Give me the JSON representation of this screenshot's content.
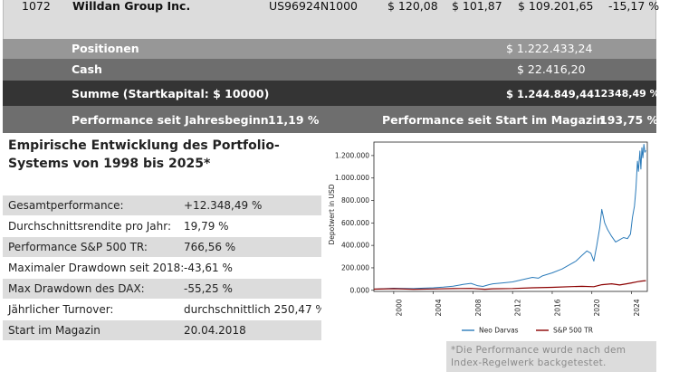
{
  "portfolio": {
    "stock_row": {
      "number": "1072",
      "name": "Willdan Group Inc.",
      "isin": "US96924N1000",
      "price_buy": "$ 120,08",
      "price_now": "$ 101,87",
      "value": "$ 109.201,65",
      "change": "-15,17 %"
    },
    "positions": {
      "label": "Positionen",
      "value": "$ 1.222.433,24"
    },
    "cash": {
      "label": "Cash",
      "value": "$ 22.416,20"
    },
    "sum": {
      "label": "Summe (Startkapital: $ 10000)",
      "value": "$ 1.244.849,44",
      "percent": "12348,49 %"
    },
    "performance": {
      "ytd_label": "Performance seit Jahresbeginn",
      "ytd_value": "11,19 %",
      "since_start_label": "Performance seit Start im Magazin",
      "since_start_value": "193,75 %"
    }
  },
  "stats": {
    "title": "Empirische Entwicklung des Portfolio-Systems von 1998 bis 2025*",
    "rows": [
      {
        "label": "Gesamtperformance:",
        "value": "+12.348,49 %"
      },
      {
        "label": "Durchschnittsrendite pro Jahr:",
        "value": "19,79 %"
      },
      {
        "label": "Performance S&P 500 TR:",
        "value": "766,56 %"
      },
      {
        "label": "Maximaler Drawdown seit 2018:",
        "value": "-43,61 %"
      },
      {
        "label": "Max Drawdown des DAX:",
        "value": "-55,25 %"
      },
      {
        "label": "Jährlicher Turnover:",
        "value": "durchschnittlich 250,47 %"
      },
      {
        "label": "Start im Magazin",
        "value": "20.04.2018"
      }
    ]
  },
  "chart_data": {
    "type": "line",
    "ylabel": "Depotwert in USD",
    "xlabel": "",
    "xlim": [
      1998,
      2025.6
    ],
    "ylim": [
      -10000,
      1320000
    ],
    "x_ticks": [
      "2000",
      "2004",
      "2008",
      "2012",
      "2016",
      "2020",
      "2024"
    ],
    "y_ticks": [
      "0.000",
      "200.000",
      "400.000",
      "600.000",
      "800.000",
      "1.000.000",
      "1.200.000"
    ],
    "series": [
      {
        "name": "Neo Darvas",
        "color": "#2b7bba",
        "points": [
          [
            1998.0,
            10000
          ],
          [
            1999.0,
            14000
          ],
          [
            2000.0,
            18000
          ],
          [
            2001.0,
            16000
          ],
          [
            2002.0,
            15000
          ],
          [
            2003.0,
            19000
          ],
          [
            2004.0,
            22000
          ],
          [
            2005.0,
            28000
          ],
          [
            2006.0,
            36000
          ],
          [
            2007.0,
            52000
          ],
          [
            2007.8,
            62000
          ],
          [
            2008.5,
            40000
          ],
          [
            2009.0,
            34000
          ],
          [
            2009.6,
            50000
          ],
          [
            2010.0,
            58000
          ],
          [
            2011.0,
            66000
          ],
          [
            2012.0,
            75000
          ],
          [
            2013.0,
            95000
          ],
          [
            2014.0,
            115000
          ],
          [
            2014.6,
            108000
          ],
          [
            2015.0,
            128000
          ],
          [
            2016.0,
            155000
          ],
          [
            2017.0,
            190000
          ],
          [
            2017.8,
            230000
          ],
          [
            2018.4,
            260000
          ],
          [
            2019.0,
            310000
          ],
          [
            2019.5,
            350000
          ],
          [
            2019.9,
            330000
          ],
          [
            2020.2,
            260000
          ],
          [
            2020.5,
            400000
          ],
          [
            2020.8,
            560000
          ],
          [
            2021.0,
            720000
          ],
          [
            2021.15,
            660000
          ],
          [
            2021.3,
            600000
          ],
          [
            2021.6,
            540000
          ],
          [
            2022.0,
            480000
          ],
          [
            2022.4,
            430000
          ],
          [
            2022.8,
            450000
          ],
          [
            2023.2,
            470000
          ],
          [
            2023.6,
            460000
          ],
          [
            2023.9,
            500000
          ],
          [
            2024.1,
            650000
          ],
          [
            2024.3,
            750000
          ],
          [
            2024.45,
            900000
          ],
          [
            2024.6,
            1150000
          ],
          [
            2024.7,
            1060000
          ],
          [
            2024.85,
            1240000
          ],
          [
            2024.95,
            1080000
          ],
          [
            2025.05,
            1270000
          ],
          [
            2025.15,
            1180000
          ],
          [
            2025.25,
            1300000
          ],
          [
            2025.35,
            1230000
          ],
          [
            2025.45,
            1245000
          ]
        ]
      },
      {
        "name": "S&P 500 TR",
        "color": "#8b0000",
        "points": [
          [
            1998.0,
            10000
          ],
          [
            2000.0,
            14000
          ],
          [
            2002.0,
            9000
          ],
          [
            2004.0,
            12000
          ],
          [
            2006.0,
            15000
          ],
          [
            2007.8,
            17000
          ],
          [
            2009.2,
            9000
          ],
          [
            2010.0,
            13000
          ],
          [
            2012.0,
            16000
          ],
          [
            2014.0,
            22000
          ],
          [
            2016.0,
            26000
          ],
          [
            2018.0,
            33000
          ],
          [
            2019.0,
            35000
          ],
          [
            2020.2,
            32000
          ],
          [
            2021.0,
            50000
          ],
          [
            2022.0,
            58000
          ],
          [
            2022.8,
            47000
          ],
          [
            2023.5,
            58000
          ],
          [
            2024.0,
            66000
          ],
          [
            2024.6,
            76000
          ],
          [
            2025.0,
            82000
          ],
          [
            2025.45,
            86000
          ]
        ]
      }
    ],
    "legend_position": "bottom"
  },
  "footnote": "*Die Performance wurde nach dem Index-Regelwerk backgetestet."
}
